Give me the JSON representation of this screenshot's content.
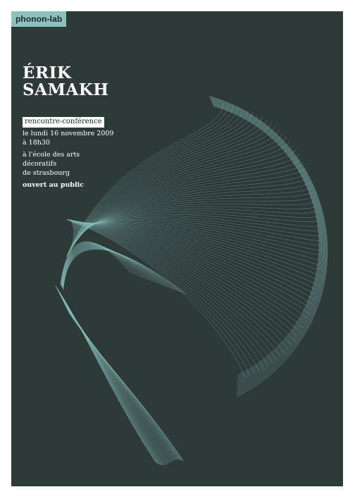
{
  "brand": "phonon-lab",
  "title": {
    "line1": "ÉRIK",
    "line2": "SAMAKH"
  },
  "event_type": "rencontre-conférence",
  "date": {
    "line1": "le lundi 16 novembre 2009",
    "line2": "à 18h30"
  },
  "venue": {
    "line1": "à l'école des arts",
    "line2": "décoratifs",
    "line3": "de strasbourg"
  },
  "access": "ouvert au public",
  "colors": {
    "background": "#2d3a38",
    "accent": "#8ac2bd",
    "text": "#ffffff"
  }
}
